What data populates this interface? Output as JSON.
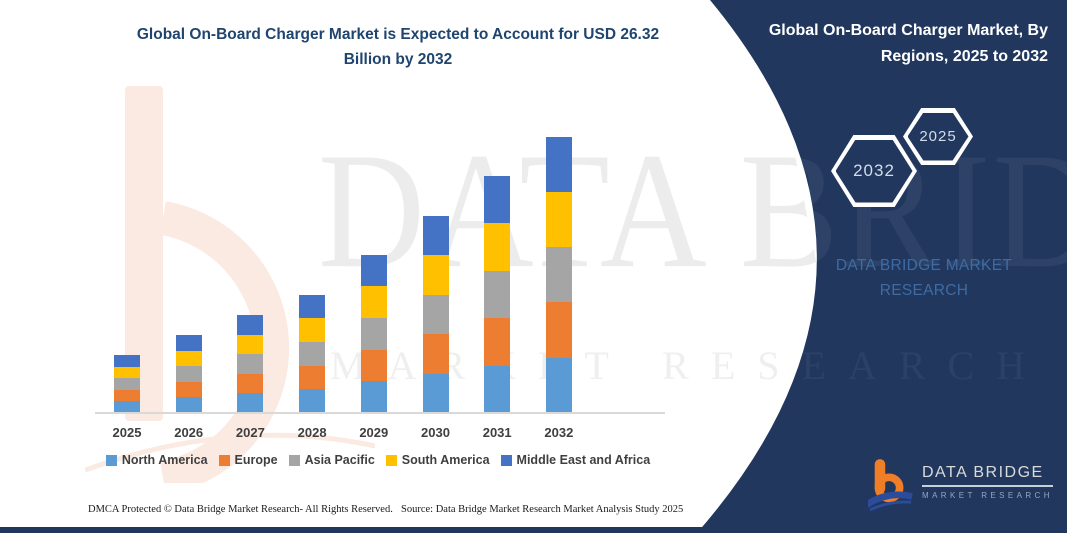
{
  "header": {
    "chart_title": "Global On-Board Charger Market is Expected to Account for USD 26.32 Billion by 2032",
    "chart_title_lines": [
      "Global On-Board Charger Market is Expected to Account for USD 26.32",
      "Billion by 2032"
    ]
  },
  "panel": {
    "title": "Global On-Board Charger Market, By Regions, 2025 to 2032",
    "title_lines": [
      "Global On-Board Charger Market, By",
      "Regions, 2025 to 2032"
    ],
    "hexagons": [
      "2032",
      "2025"
    ],
    "wordmark_lines": [
      "DATA BRIDGE MARKET",
      "RESEARCH"
    ],
    "logo": {
      "name": "DATA BRIDGE",
      "sub": "MARKET RESEARCH"
    }
  },
  "watermark": {
    "line1": "DATA BRIDGE",
    "line2": "MARKET RESEARCH"
  },
  "footer": {
    "dmca": "DMCA Protected © Data Bridge Market Research- All Rights Reserved.",
    "source": "Source: Data Bridge Market Research Market Analysis Study 2025"
  },
  "colors": {
    "panel_navy": "#21375E",
    "title_blue": "#1F456E",
    "wordmark_blue": "#3D6CA4",
    "logo_orange": "#F07E26",
    "logo_swoosh_blue": "#2B4B9B",
    "axis_gray": "#D9D9D9",
    "label_gray": "#3F3F3F"
  },
  "chart_data": {
    "type": "bar",
    "stacked": true,
    "title": "Global On-Board Charger Market is Expected to Account for USD 26.32 Billion by 2032",
    "unit": "USD Billion",
    "xlabel": "",
    "ylabel": "",
    "ylim": [
      0,
      26.32
    ],
    "grid": false,
    "y_axis_visible": false,
    "legend_position": "bottom",
    "categories": [
      "2025",
      "2026",
      "2027",
      "2028",
      "2029",
      "2030",
      "2031",
      "2032"
    ],
    "series": [
      {
        "name": "North America",
        "color": "#5B9BD5",
        "values": [
          1.1,
          1.48,
          1.86,
          2.26,
          3.02,
          3.76,
          4.52,
          5.28
        ]
      },
      {
        "name": "Europe",
        "color": "#ED7D31",
        "values": [
          1.1,
          1.48,
          1.86,
          2.26,
          3.02,
          3.76,
          4.52,
          5.26
        ]
      },
      {
        "name": "Asia Pacific",
        "color": "#A5A5A5",
        "values": [
          1.1,
          1.48,
          1.86,
          2.26,
          3.02,
          3.76,
          4.52,
          5.26
        ]
      },
      {
        "name": "South America",
        "color": "#FFC000",
        "values": [
          1.1,
          1.48,
          1.86,
          2.26,
          3.02,
          3.76,
          4.52,
          5.26
        ]
      },
      {
        "name": "Middle East and Africa",
        "color": "#4472C4",
        "values": [
          1.1,
          1.48,
          1.86,
          2.26,
          3.02,
          3.76,
          4.52,
          5.26
        ]
      }
    ],
    "totals": [
      5.5,
      7.4,
      9.3,
      11.3,
      15.1,
      18.8,
      22.6,
      26.32
    ],
    "highlight_value_2032": "USD 26.32 Billion"
  }
}
